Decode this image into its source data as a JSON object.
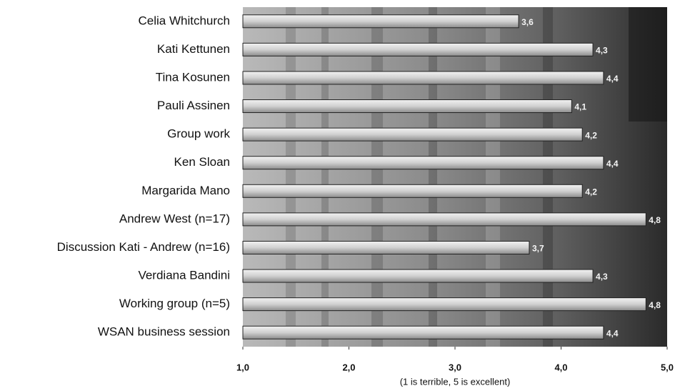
{
  "chart_data": {
    "type": "bar",
    "orientation": "horizontal",
    "categories": [
      "Celia Whitchurch",
      "Kati Kettunen",
      "Tina Kosunen",
      "Pauli Assinen",
      "Group work",
      "Ken Sloan",
      "Margarida Mano",
      "Andrew West (n=17)",
      "Discussion Kati - Andrew (n=16)",
      "Verdiana Bandini",
      "Working group (n=5)",
      "WSAN business session"
    ],
    "values": [
      3.6,
      4.3,
      4.4,
      4.1,
      4.2,
      4.4,
      4.2,
      4.8,
      3.7,
      4.3,
      4.8,
      4.4
    ],
    "value_labels": [
      "3,6",
      "4,3",
      "4,4",
      "4,1",
      "4,2",
      "4,4",
      "4,2",
      "4,8",
      "3,7",
      "4,3",
      "4,8",
      "4,4"
    ],
    "color": "#d9d9d9",
    "xlim": [
      1,
      5
    ],
    "xticks": [
      {
        "value": 1,
        "label": "1,0"
      },
      {
        "value": 2,
        "label": "2,0"
      },
      {
        "value": 3,
        "label": "3,0"
      },
      {
        "value": 4,
        "label": "4,0"
      },
      {
        "value": 5,
        "label": "5,0"
      }
    ],
    "xlabel": "(1 is terrible, 5 is excellent)"
  }
}
